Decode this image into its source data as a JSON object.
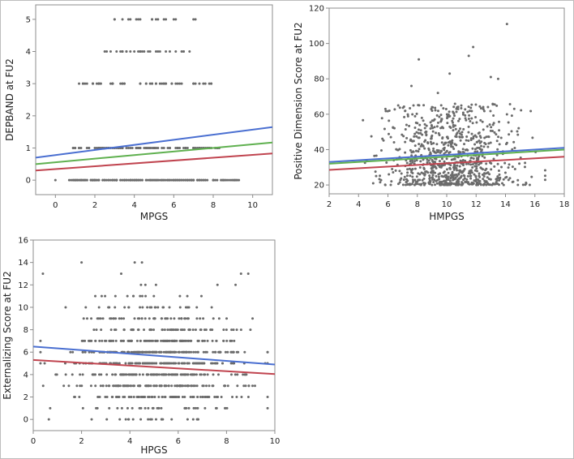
{
  "chart_data": [
    {
      "type": "scatter",
      "xlabel": "MPGS",
      "ylabel": "DEPBAND at FU2",
      "xlim": [
        -1,
        11
      ],
      "ylim": [
        -0.45,
        5.45
      ],
      "xticks": [
        0,
        2,
        4,
        6,
        8,
        10
      ],
      "yticks": [
        0,
        1,
        2,
        3,
        4,
        5
      ],
      "discrete_rows": [
        {
          "y": 0,
          "x_range": [
            0.7,
            9.3
          ],
          "n": 200,
          "seed": 11,
          "x_extra": [
            0.0
          ]
        },
        {
          "y": 1,
          "x_range": [
            0.9,
            8.4
          ],
          "n": 120,
          "seed": 12
        },
        {
          "y": 3,
          "x_range": [
            1.1,
            8.0
          ],
          "n": 55,
          "seed": 13
        },
        {
          "y": 4,
          "x_range": [
            2.3,
            7.6
          ],
          "n": 30,
          "seed": 14
        },
        {
          "y": 5,
          "x_range": [
            3.0,
            7.9
          ],
          "n": 18,
          "seed": 15
        }
      ],
      "series": [
        {
          "color": "#4a6fd1",
          "x": [
            -1,
            11
          ],
          "y": [
            0.7,
            1.65
          ]
        },
        {
          "color": "#5fb04f",
          "x": [
            -1,
            11
          ],
          "y": [
            0.5,
            1.17
          ]
        },
        {
          "color": "#c0444f",
          "x": [
            -1,
            11
          ],
          "y": [
            0.3,
            0.83
          ]
        }
      ]
    },
    {
      "type": "scatter",
      "xlabel": "HMPGS",
      "ylabel": "Positive Dimension Score at FU2",
      "xlim": [
        2,
        18
      ],
      "ylim": [
        15,
        120
      ],
      "xticks": [
        2,
        4,
        6,
        8,
        10,
        12,
        14,
        16,
        18
      ],
      "yticks": [
        20,
        40,
        60,
        80,
        100,
        120
      ],
      "cloud": {
        "x_mean": 10.3,
        "x_sd": 2.3,
        "x_range": [
          4.3,
          16.7
        ],
        "y_min": 20,
        "y_max": 66,
        "n": 900,
        "seed": 21
      },
      "outliers": [
        [
          14.1,
          111
        ],
        [
          11.8,
          98
        ],
        [
          11.5,
          93
        ],
        [
          8.1,
          91
        ],
        [
          13.0,
          81
        ],
        [
          10.2,
          83
        ],
        [
          7.6,
          76
        ],
        [
          9.4,
          72
        ],
        [
          13.5,
          80
        ],
        [
          6.1,
          62
        ],
        [
          9.0,
          64
        ]
      ],
      "series": [
        {
          "color": "#4a6fd1",
          "x": [
            2,
            18
          ],
          "y": [
            33,
            41
          ]
        },
        {
          "color": "#5fb04f",
          "x": [
            2,
            18
          ],
          "y": [
            32,
            40
          ]
        },
        {
          "color": "#c0444f",
          "x": [
            2,
            18
          ],
          "y": [
            28.5,
            36
          ]
        }
      ]
    },
    {
      "type": "scatter",
      "xlabel": "HPGS",
      "ylabel": "Externalizing Score at FU2",
      "xlim": [
        0,
        10
      ],
      "ylim": [
        -1,
        16
      ],
      "xticks": [
        0,
        2,
        4,
        6,
        8,
        10
      ],
      "yticks": [
        0,
        2,
        4,
        6,
        8,
        10,
        12,
        14,
        16
      ],
      "discrete_cloud": {
        "y_values": [
          0,
          1,
          2,
          3,
          4,
          5,
          6,
          7,
          8,
          9,
          10,
          11,
          12,
          13,
          14
        ],
        "x_mean": 5.2,
        "x_sd": 1.7,
        "x_range": [
          0.3,
          9.7
        ],
        "n": 900,
        "seed": 31
      },
      "outliers": [
        [
          0.4,
          13
        ],
        [
          2.0,
          14
        ],
        [
          4.2,
          14
        ],
        [
          4.5,
          14
        ],
        [
          8.6,
          13
        ],
        [
          8.9,
          13
        ],
        [
          0.3,
          6
        ],
        [
          9.6,
          5
        ]
      ],
      "series": [
        {
          "color": "#4a6fd1",
          "x": [
            0,
            10
          ],
          "y": [
            6.5,
            4.9
          ]
        },
        {
          "color": "#c0444f",
          "x": [
            0,
            10
          ],
          "y": [
            5.3,
            4.05
          ]
        }
      ]
    }
  ]
}
